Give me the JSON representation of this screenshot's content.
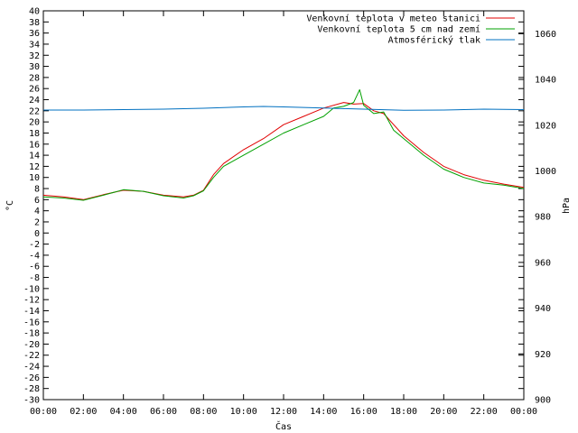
{
  "chart_data": {
    "type": "line",
    "xlabel": "Čas",
    "ylabel": "°C",
    "y2label": "hPa",
    "xlim": [
      0,
      24
    ],
    "ylim": [
      -30,
      40
    ],
    "y2lim": [
      900,
      1070
    ],
    "grid": false,
    "legend_position": "top-right",
    "x_tick_labels": [
      "00:00",
      "02:00",
      "04:00",
      "06:00",
      "08:00",
      "10:00",
      "12:00",
      "14:00",
      "16:00",
      "18:00",
      "20:00",
      "22:00",
      "00:00"
    ],
    "y_tick_labels": [
      "-30",
      "-28",
      "-26",
      "-24",
      "-22",
      "-20",
      "-18",
      "-16",
      "-14",
      "-12",
      "-10",
      "-8",
      "-6",
      "-4",
      "-2",
      "0",
      "2",
      "4",
      "6",
      "8",
      "10",
      "12",
      "14",
      "16",
      "18",
      "20",
      "22",
      "24",
      "26",
      "28",
      "30",
      "32",
      "34",
      "36",
      "38",
      "40"
    ],
    "y2_tick_labels": [
      "900",
      "920",
      "940",
      "960",
      "980",
      "1000",
      "1020",
      "1040",
      "1060"
    ],
    "series": [
      {
        "name": "Venkovní teplota v meteo stanici",
        "color": "#e00000",
        "axis": "y",
        "x": [
          0,
          1,
          2,
          3,
          4,
          5,
          6,
          7,
          7.5,
          8,
          8.5,
          9,
          10,
          11,
          12,
          13,
          14,
          15,
          15.5,
          16,
          16.5,
          17,
          17.5,
          18,
          19,
          20,
          21,
          22,
          23,
          24
        ],
        "y": [
          6.8,
          6.5,
          6.0,
          6.9,
          7.7,
          7.5,
          6.8,
          6.5,
          6.8,
          7.7,
          10.5,
          12.5,
          15.0,
          17.0,
          19.5,
          21.0,
          22.5,
          23.5,
          23.2,
          23.3,
          22.0,
          21.5,
          19.5,
          17.5,
          14.5,
          12.0,
          10.5,
          9.5,
          8.8,
          8.2
        ]
      },
      {
        "name": "Venkovní teplota 5 cm nad zemí",
        "color": "#00a000",
        "axis": "y",
        "x": [
          0,
          1,
          2,
          3,
          4,
          5,
          6,
          7,
          7.5,
          8,
          8.5,
          9,
          10,
          11,
          12,
          13,
          14,
          14.5,
          15,
          15.5,
          15.8,
          16,
          16.5,
          17,
          17.5,
          18,
          19,
          20,
          21,
          22,
          23,
          24
        ],
        "y": [
          6.5,
          6.3,
          5.9,
          6.8,
          7.8,
          7.5,
          6.7,
          6.3,
          6.7,
          7.6,
          10.0,
          12.0,
          14.0,
          16.0,
          18.0,
          19.5,
          21.0,
          22.5,
          22.8,
          23.5,
          25.8,
          23.0,
          21.5,
          21.8,
          18.5,
          17.0,
          14.0,
          11.5,
          10.0,
          9.0,
          8.6,
          8.0
        ]
      },
      {
        "name": "Atmosférický tlak",
        "color": "#0070c0",
        "axis": "y2",
        "x": [
          0,
          2,
          4,
          6,
          8,
          10,
          11,
          12,
          14,
          16,
          18,
          20,
          22,
          24
        ],
        "y": [
          1026.6,
          1026.6,
          1026.8,
          1027.0,
          1027.4,
          1028.0,
          1028.2,
          1028.0,
          1027.5,
          1027.0,
          1026.5,
          1026.6,
          1027.0,
          1026.8
        ]
      }
    ]
  }
}
